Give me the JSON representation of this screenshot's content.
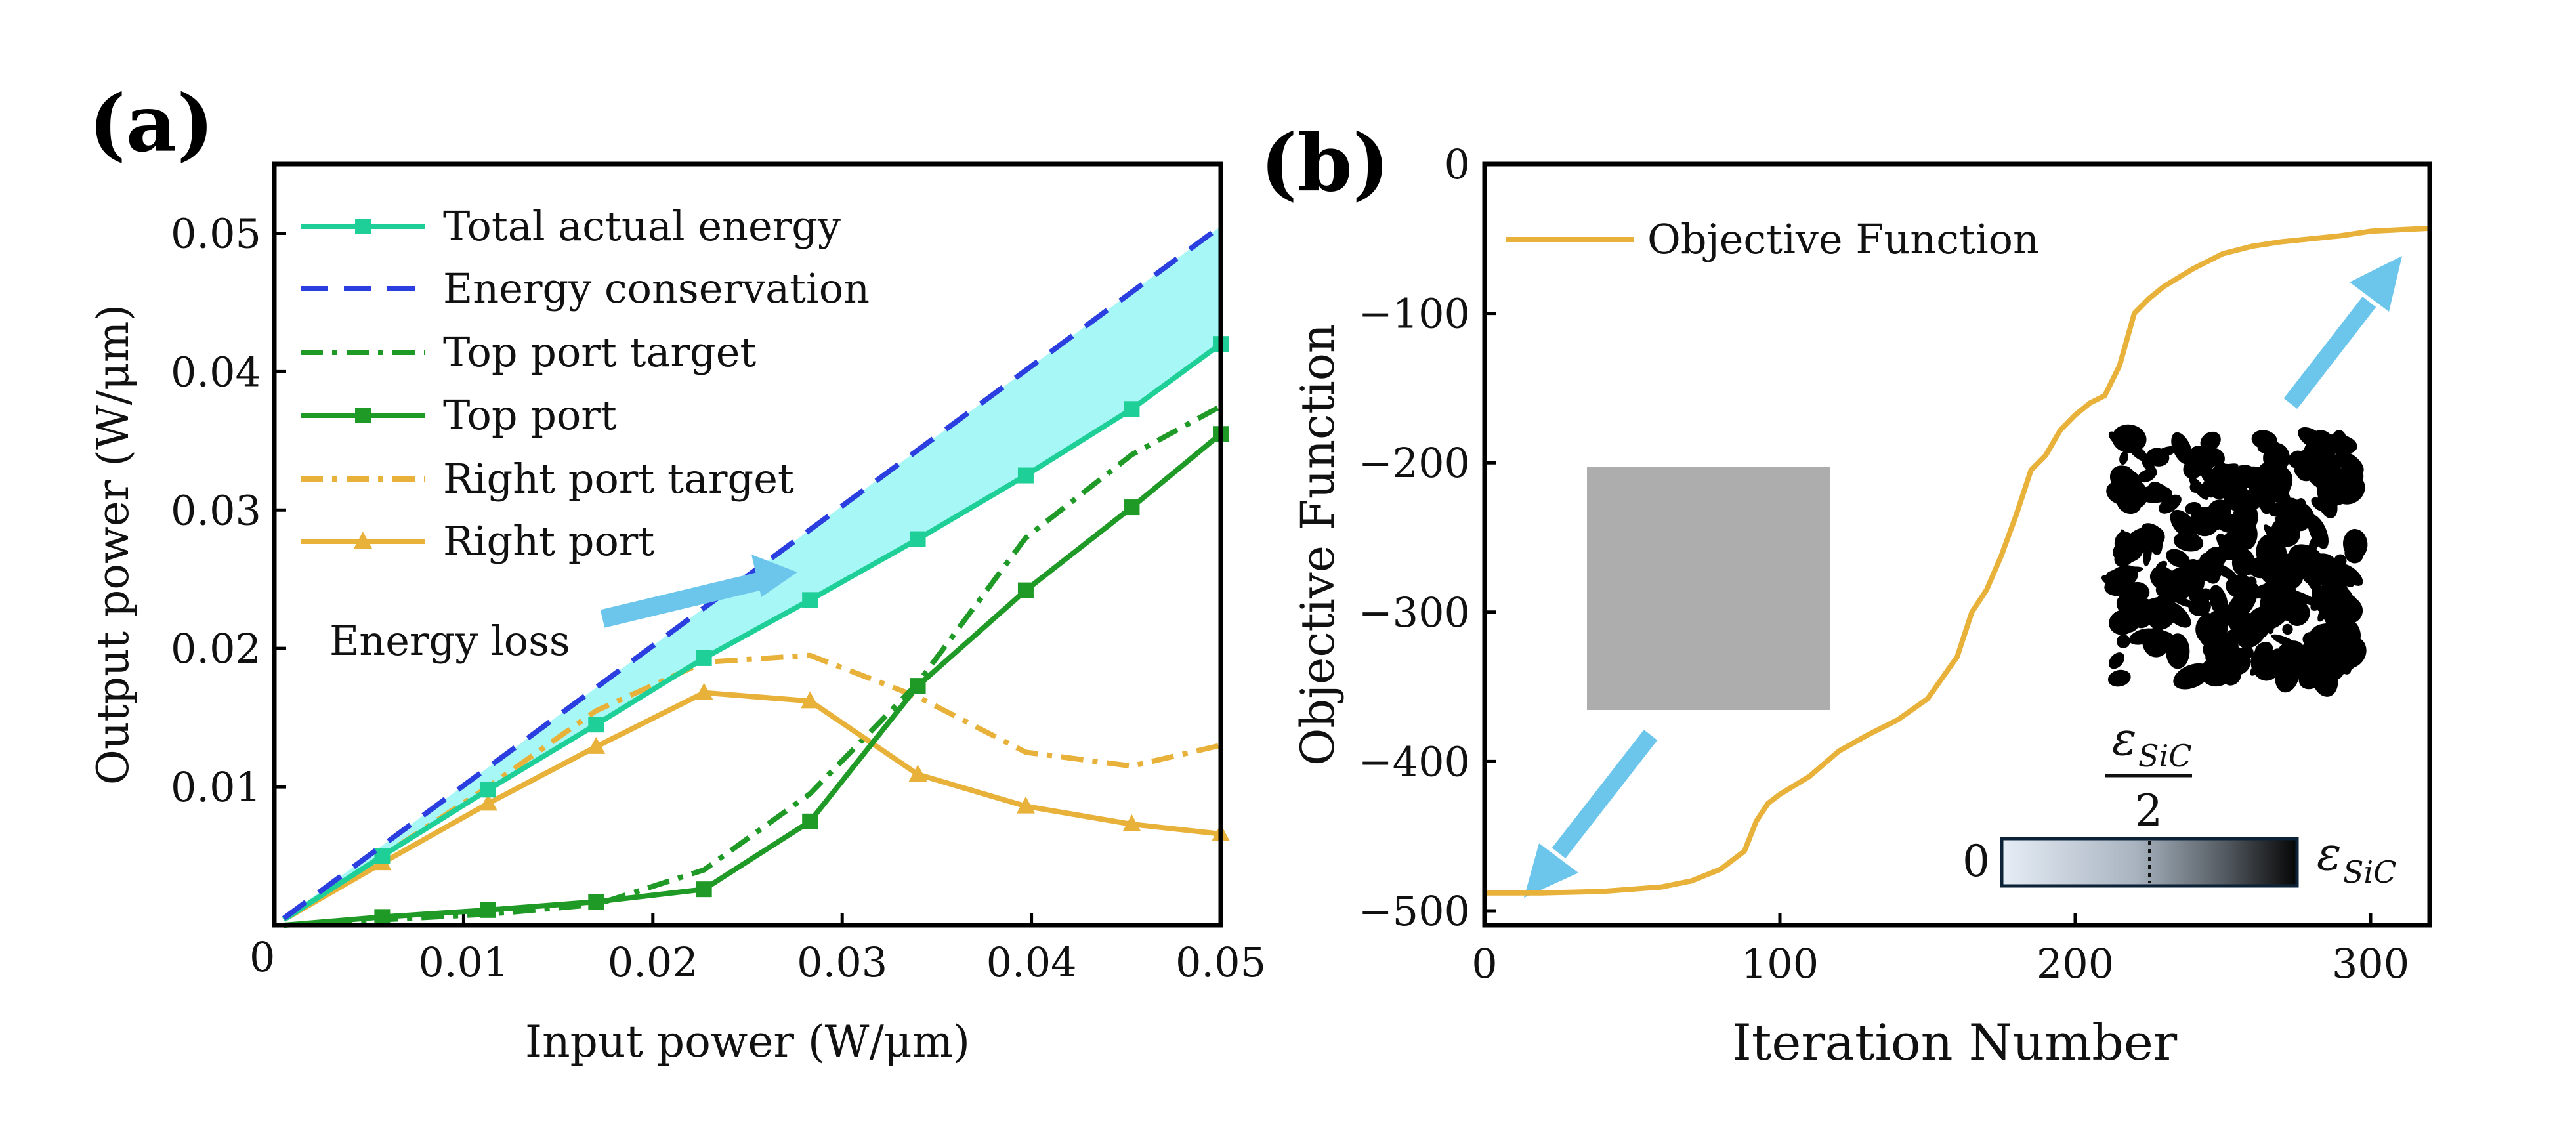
{
  "colors": {
    "total": "#1fcf98",
    "conservation": "#2b3fe0",
    "top": "#1f9a26",
    "right": "#e8b13a",
    "loss_fill": "#a8f7f7",
    "arrow": "#6cc6ec",
    "objective": "#e8b13a",
    "gray_square": "#adadad"
  },
  "chart_data": [
    {
      "panel_label": "(a)",
      "type": "line",
      "xlabel": "Input power (W/μm)",
      "ylabel": "Output  power (W/μm)",
      "xlim": [
        0,
        0.05
      ],
      "ylim": [
        0,
        0.055
      ],
      "origin_label": "0",
      "xticks": [
        0.01,
        0.02,
        0.03,
        0.04,
        0.05
      ],
      "xtick_labels": [
        "0.01",
        "0.02",
        "0.03",
        "0.04",
        "0.05"
      ],
      "yticks": [
        0.01,
        0.02,
        0.03,
        0.04,
        0.05
      ],
      "ytick_labels": [
        "0.01",
        "0.02",
        "0.03",
        "0.04",
        "0.05"
      ],
      "annotation": "Energy loss",
      "series": [
        {
          "key": "total",
          "name": "Total actual energy",
          "style": "solid",
          "marker": "square",
          "x": [
            0.0005,
            0.0057,
            0.0113,
            0.017,
            0.0227,
            0.0283,
            0.034,
            0.0397,
            0.0453,
            0.05
          ],
          "y": [
            0.0004,
            0.005,
            0.0098,
            0.0145,
            0.0193,
            0.0235,
            0.0279,
            0.0325,
            0.0373,
            0.042
          ]
        },
        {
          "key": "conservation",
          "name": "Energy conservation",
          "style": "dashed",
          "marker": "none",
          "x": [
            0.0005,
            0.05
          ],
          "y": [
            0.0005,
            0.0505
          ]
        },
        {
          "key": "toptarget",
          "name": "Top port target",
          "style": "dashdot",
          "marker": "none",
          "x": [
            0.0005,
            0.0057,
            0.0113,
            0.017,
            0.0227,
            0.0283,
            0.034,
            0.0397,
            0.0453,
            0.05
          ],
          "y": [
            0.0,
            0.0004,
            0.0008,
            0.0015,
            0.004,
            0.0095,
            0.0175,
            0.028,
            0.034,
            0.0375
          ]
        },
        {
          "key": "top",
          "name": "Top port",
          "style": "solid",
          "marker": "square",
          "x": [
            0.0005,
            0.0057,
            0.0113,
            0.017,
            0.0227,
            0.0283,
            0.034,
            0.0397,
            0.0453,
            0.05
          ],
          "y": [
            0.0,
            0.0006,
            0.0011,
            0.0017,
            0.0026,
            0.0075,
            0.0173,
            0.0242,
            0.0302,
            0.0355
          ]
        },
        {
          "key": "righttarget",
          "name": "Right port target",
          "style": "dashdot",
          "marker": "none",
          "x": [
            0.0005,
            0.0057,
            0.0113,
            0.017,
            0.0227,
            0.0283,
            0.034,
            0.0397,
            0.0453,
            0.05
          ],
          "y": [
            0.0004,
            0.005,
            0.01,
            0.0155,
            0.019,
            0.0195,
            0.0165,
            0.0125,
            0.0115,
            0.013
          ]
        },
        {
          "key": "right",
          "name": "Right port",
          "style": "solid",
          "marker": "triangle",
          "x": [
            0.0005,
            0.0057,
            0.0113,
            0.017,
            0.0227,
            0.0283,
            0.034,
            0.0397,
            0.0453,
            0.05
          ],
          "y": [
            0.0004,
            0.0045,
            0.0088,
            0.0129,
            0.0168,
            0.0162,
            0.0109,
            0.0086,
            0.0073,
            0.0066
          ]
        }
      ]
    },
    {
      "panel_label": "(b)",
      "type": "line",
      "xlabel": "Iteration Number",
      "ylabel": "Objective Function",
      "xlim": [
        0,
        320
      ],
      "ylim": [
        -500,
        0
      ],
      "xticks": [
        0,
        100,
        200,
        300
      ],
      "xtick_labels": [
        "0",
        "100",
        "200",
        "300"
      ],
      "yticks": [
        0,
        -100,
        -200,
        -300,
        -400,
        -500
      ],
      "ytick_labels": [
        "0",
        "−100",
        "−200",
        "−300",
        "−400",
        "−500"
      ],
      "colorbar": {
        "min_label": "0",
        "mid_label_num": "ε",
        "mid_label_sub": "SiC",
        "mid_label_den": "2",
        "max_label": "ε",
        "max_label_sub": "SiC"
      },
      "series": [
        {
          "key": "objective",
          "name": "Objective Function",
          "x": [
            0,
            20,
            40,
            60,
            70,
            80,
            88,
            92,
            96,
            100,
            110,
            120,
            130,
            140,
            150,
            160,
            165,
            170,
            175,
            180,
            185,
            190,
            195,
            200,
            205,
            210,
            215,
            220,
            225,
            230,
            240,
            250,
            260,
            270,
            280,
            290,
            300,
            310,
            320
          ],
          "y": [
            -488,
            -488,
            -487,
            -484,
            -480,
            -472,
            -460,
            -440,
            -428,
            -422,
            -410,
            -393,
            -382,
            -372,
            -358,
            -330,
            -300,
            -285,
            -262,
            -235,
            -205,
            -195,
            -178,
            -168,
            -160,
            -155,
            -135,
            -100,
            -90,
            -82,
            -70,
            -60,
            -55,
            -52,
            -50,
            -48,
            -45,
            -44,
            -43
          ]
        }
      ]
    }
  ]
}
